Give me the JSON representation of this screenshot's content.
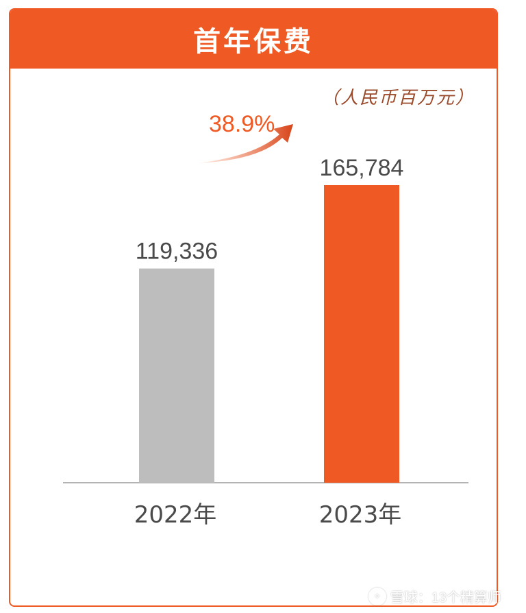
{
  "header": {
    "title": "首年保费"
  },
  "unit_label": "（人民币百万元）",
  "growth": {
    "label": "38.9%"
  },
  "colors": {
    "accent": "#EF5A24",
    "gray_bar": "#BDBDBD",
    "text": "#4A4A4A",
    "axis": "#9A9A9A"
  },
  "watermark": {
    "text": "雪球：13个精算师",
    "icon": "snowball-logo-icon"
  },
  "chart_data": {
    "type": "bar",
    "title": "首年保费",
    "unit": "（人民币百万元）",
    "categories": [
      "2022年",
      "2023年"
    ],
    "values": [
      119336,
      165784
    ],
    "value_labels": [
      "119,336",
      "165,784"
    ],
    "bar_colors": [
      "#BDBDBD",
      "#EF5A24"
    ],
    "annotations": [
      "38.9%"
    ],
    "ylim": [
      0,
      200000
    ],
    "grid": false,
    "legend": "none"
  }
}
